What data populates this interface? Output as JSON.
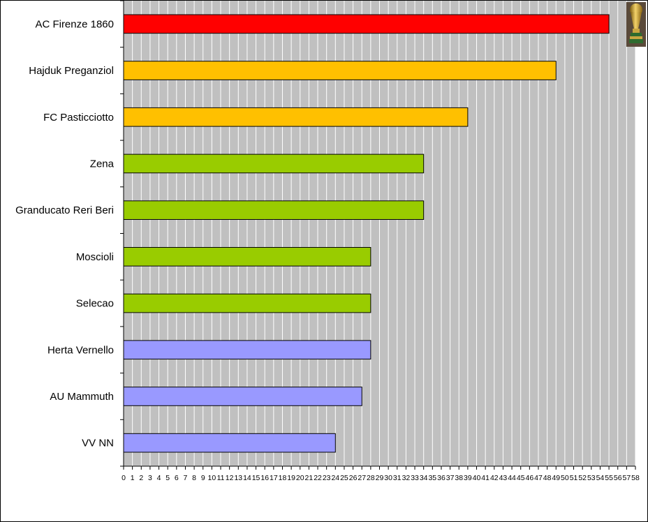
{
  "chart_data": {
    "type": "bar",
    "orientation": "horizontal",
    "categories": [
      "AC Firenze 1860",
      "Hajduk Preganziol",
      "FC Pasticciotto",
      "Zena",
      "Granducato Reri Beri",
      "Moscioli",
      "Selecao",
      "Herta Vernello",
      "AU Mammuth",
      "VV NN"
    ],
    "values": [
      55,
      49,
      39,
      34,
      34,
      28,
      28,
      28,
      27,
      24
    ],
    "bar_colors": [
      "#ff0000",
      "#ffc000",
      "#ffc000",
      "#99cc00",
      "#99cc00",
      "#99cc00",
      "#99cc00",
      "#9999ff",
      "#9999ff",
      "#9999ff"
    ],
    "xlim": [
      0,
      58
    ],
    "xticks": [
      0,
      1,
      2,
      3,
      4,
      5,
      6,
      7,
      8,
      9,
      10,
      11,
      12,
      13,
      14,
      15,
      16,
      17,
      18,
      19,
      20,
      21,
      22,
      23,
      24,
      25,
      26,
      27,
      28,
      29,
      30,
      31,
      32,
      33,
      34,
      35,
      36,
      37,
      38,
      39,
      40,
      41,
      42,
      43,
      44,
      45,
      46,
      47,
      48,
      49,
      50,
      51,
      52,
      53,
      54,
      55,
      56,
      57,
      58
    ],
    "grid": "vertical",
    "plot_background": "#c0c0c0",
    "gridline_color": "#ffffff",
    "legend": "none",
    "title": "",
    "xlabel": "",
    "ylabel": ""
  },
  "decoration": {
    "icon": "trophy-icon"
  }
}
